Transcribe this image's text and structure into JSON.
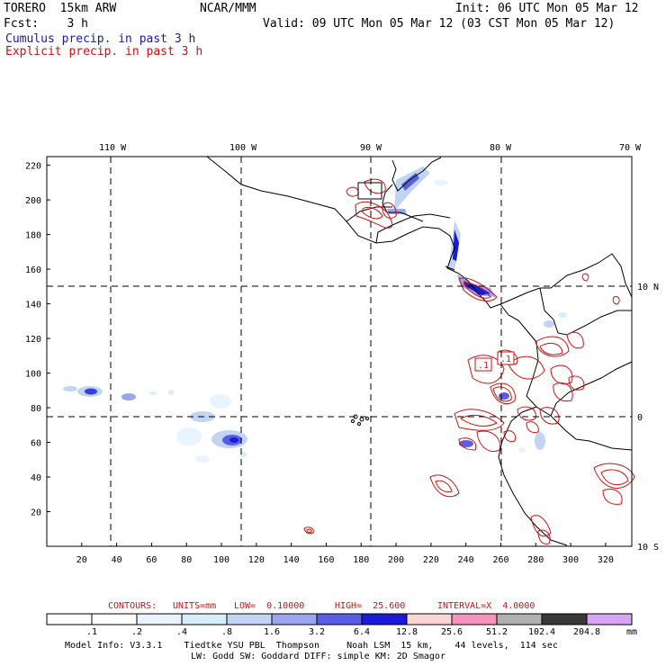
{
  "header": {
    "model": "TORERO  15km ARW",
    "org": "NCAR/MMM",
    "init": "Init: 06 UTC Mon 05 Mar 12",
    "fcst": "Fcst:    3 h",
    "valid": "Valid: 09 UTC Mon 05 Mar 12 (03 CST Mon 05 Mar 12)",
    "cumulus": "Cumulus precip. in past 3 h",
    "explicit": "Explicit precip. in past 3 h"
  },
  "map": {
    "lon_labels": [
      "110 W",
      "100 W",
      "90 W",
      "80 W",
      "70 W"
    ],
    "lat_labels": [
      "10 N",
      "0",
      "10 S"
    ],
    "x_ticks": [
      "20",
      "40",
      "60",
      "80",
      "100",
      "120",
      "140",
      "160",
      "180",
      "200",
      "220",
      "240",
      "260",
      "280",
      "300",
      "320"
    ],
    "y_ticks": [
      "20",
      "40",
      "60",
      "80",
      "100",
      "120",
      "140",
      "160",
      "180",
      "200",
      "220"
    ],
    "x_range": [
      0,
      335
    ],
    "y_range": [
      0,
      225
    ],
    "contour_labels": [
      ".1",
      ".1"
    ]
  },
  "contours_info": {
    "label": "CONTOURS:",
    "units": "UNITS=mm",
    "low": "LOW=  0.10000",
    "high": "HIGH=  25.600",
    "interval": "INTERVAL=X  4.0000"
  },
  "colorbar": {
    "levels": [
      ".1",
      ".2",
      ".4",
      ".8",
      "1.6",
      "3.2",
      "6.4",
      "12.8",
      "25.6",
      "51.2",
      "102.4",
      "204.8"
    ],
    "colors": [
      "#ffffff",
      "#ffffff",
      "#eaf4ff",
      "#d6edfc",
      "#c2d4f4",
      "#9aa6ee",
      "#5a5ee6",
      "#1a1ad8",
      "#fcd6d6",
      "#f494be",
      "#b0b0b0",
      "#383838",
      "#d8a4f4"
    ],
    "unit": "mm"
  },
  "footer": {
    "line1": "Model Info: V3.3.1    Tiedtke YSU PBL  Thompson     Noah LSM  15 km,    44 levels,  114 sec",
    "line2": "LW: Godd SW: Goddard DIFF: simple KM: 2D Smagor"
  }
}
